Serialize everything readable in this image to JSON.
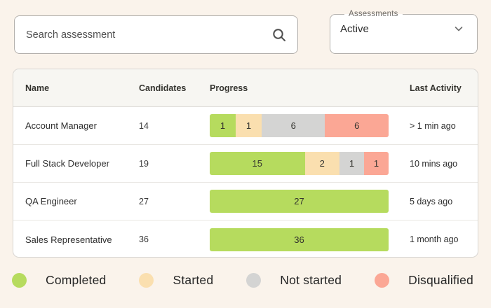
{
  "search": {
    "placeholder": "Search assessment"
  },
  "filter": {
    "label": "Assessments",
    "value": "Active"
  },
  "table": {
    "headers": {
      "name": "Name",
      "candidates": "Candidates",
      "progress": "Progress",
      "last_activity": "Last Activity"
    },
    "rows": [
      {
        "name": "Account Manager",
        "candidates": "14",
        "last_activity": "> 1 min ago",
        "progress": [
          {
            "status": "completed",
            "value": 1
          },
          {
            "status": "started",
            "value": 1
          },
          {
            "status": "not_started",
            "value": 6
          },
          {
            "status": "disqualified",
            "value": 6
          }
        ]
      },
      {
        "name": "Full Stack Developer",
        "candidates": "19",
        "last_activity": "10 mins ago",
        "progress": [
          {
            "status": "completed",
            "value": 15
          },
          {
            "status": "started",
            "value": 2
          },
          {
            "status": "not_started",
            "value": 1
          },
          {
            "status": "disqualified",
            "value": 1
          }
        ]
      },
      {
        "name": "QA Engineer",
        "candidates": "27",
        "last_activity": "5 days ago",
        "progress": [
          {
            "status": "completed",
            "value": 27
          }
        ]
      },
      {
        "name": "Sales Representative",
        "candidates": "36",
        "last_activity": "1 month ago",
        "progress": [
          {
            "status": "completed",
            "value": 36
          }
        ]
      }
    ]
  },
  "legend": [
    {
      "status": "completed",
      "label": "Completed"
    },
    {
      "status": "started",
      "label": "Started"
    },
    {
      "status": "not_started",
      "label": "Not started"
    },
    {
      "status": "disqualified",
      "label": "Disqualified"
    }
  ],
  "status_colors": {
    "completed": "#b6db5e",
    "started": "#fadfaf",
    "not_started": "#d4d4d3",
    "disqualified": "#fba795"
  }
}
